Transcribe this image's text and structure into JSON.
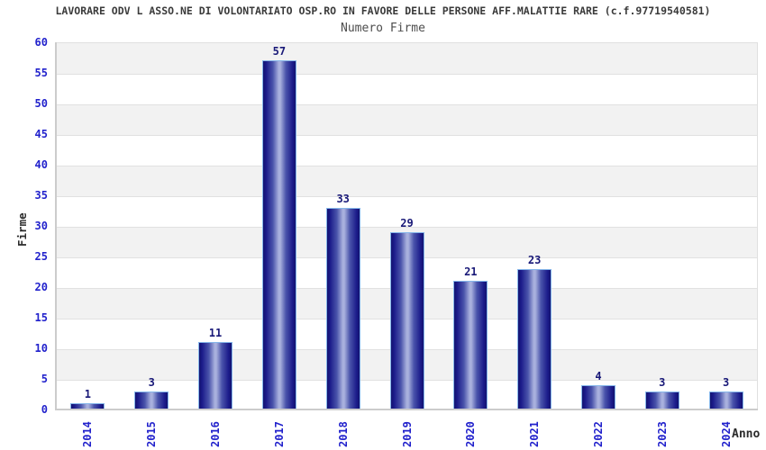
{
  "header": {
    "title": "LAVORARE ODV L ASSO.NE DI VOLONTARIATO OSP.RO IN FAVORE DELLE PERSONE AFF.MALATTIE RARE (c.f.97719540581)",
    "subtitle": "Numero Firme"
  },
  "chart_data": {
    "type": "bar",
    "title": "Numero Firme",
    "categories": [
      "2014",
      "2015",
      "2016",
      "2017",
      "2018",
      "2019",
      "2020",
      "2021",
      "2022",
      "2023",
      "2024"
    ],
    "values": [
      1,
      3,
      11,
      57,
      33,
      29,
      21,
      23,
      4,
      3,
      3
    ],
    "xlabel": "Anno",
    "ylabel": "Firme",
    "ylim": [
      0,
      60
    ],
    "ytick_step": 5,
    "yticks": [
      0,
      5,
      10,
      15,
      20,
      25,
      30,
      35,
      40,
      45,
      50,
      55,
      60
    ],
    "grid": "horizontal alternating bands, gridline every 5 units",
    "legend": false,
    "colors": {
      "bar_edge": "#13136f",
      "bar_mid": "#a8b0dd",
      "bar_border": "#85b6ea",
      "tick_label": "#2222cc",
      "value_label": "#191978",
      "band_gray": "#f2f2f2",
      "band_white": "#ffffff",
      "gridline": "#e1e1e1",
      "axis": "#cccccc",
      "title_color": "#3a3a3a"
    }
  }
}
